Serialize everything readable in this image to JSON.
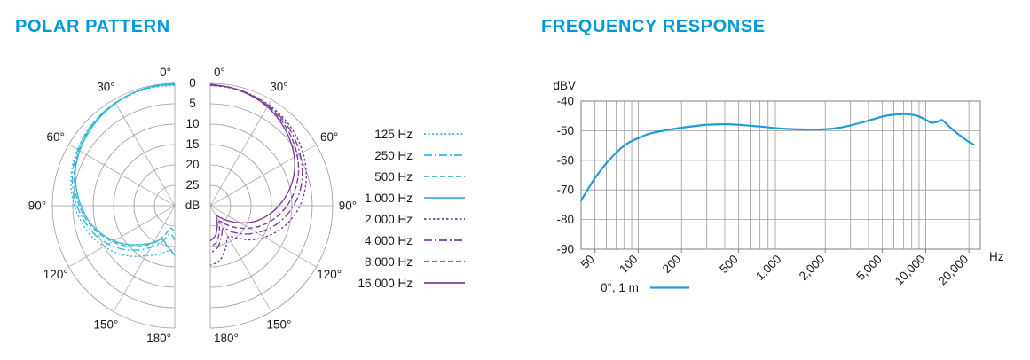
{
  "theme": {
    "accent": "#0099d8",
    "text": "#1a1a1a",
    "grid": "#9b9b9b",
    "frame": "#7d7d7d"
  },
  "chart_data": [
    {
      "type": "polar",
      "title": "POLAR PATTERN",
      "unit": "dB",
      "max_db": 30,
      "angle_step": 10,
      "rings_db": [
        0,
        5,
        10,
        15,
        20,
        25
      ],
      "db_axis_labels": [
        "0",
        "5",
        "10",
        "15",
        "20",
        "25",
        "dB"
      ],
      "angle_labels": [
        "0°",
        "30°",
        "60°",
        "90°",
        "120°",
        "150°",
        "180°"
      ],
      "series": [
        {
          "label": "125 Hz",
          "color": "#36b6d9",
          "dash": "2 2.6",
          "side": "left",
          "db": [
            0.5,
            0.5,
            0.7,
            0.9,
            1.3,
            1.8,
            2.4,
            3.2,
            4.2,
            5.4,
            6.8,
            8.2,
            10,
            11.8,
            13.8,
            15.8,
            17.2,
            18.6,
            19.4
          ]
        },
        {
          "label": "250 Hz",
          "color": "#36b6d9",
          "dash": "9 3 2 3",
          "side": "left",
          "db": [
            0.3,
            0.4,
            0.6,
            0.9,
            1.3,
            1.9,
            2.6,
            3.5,
            4.6,
            6,
            7.6,
            9.2,
            11.2,
            13.4,
            15.8,
            18.2,
            20.4,
            23,
            21.6
          ]
        },
        {
          "label": "500 Hz",
          "color": "#36b6d9",
          "dash": "6 3",
          "side": "left",
          "db": [
            0.2,
            0.3,
            0.5,
            0.9,
            1.4,
            2.1,
            2.9,
            3.9,
            5.1,
            6.6,
            8.2,
            10.2,
            12.4,
            14.6,
            17,
            19.4,
            22,
            24.4,
            23.2
          ]
        },
        {
          "label": "1,000 Hz",
          "color": "#36b6d9",
          "dash": null,
          "side": "left",
          "db": [
            0,
            0.2,
            0.5,
            1,
            1.6,
            2.3,
            3.1,
            4.1,
            5.5,
            7,
            8.6,
            10.6,
            12.8,
            15.2,
            17.6,
            19.6,
            21.2,
            19.8,
            17.8
          ]
        },
        {
          "label": "2,000 Hz",
          "color": "#7b3f97",
          "dash": "2.5 2.5",
          "side": "right",
          "db": [
            0.5,
            0.7,
            1,
            1.4,
            2,
            2.8,
            3.8,
            5,
            6.4,
            8,
            10,
            12.2,
            14.6,
            17,
            19.6,
            21.2,
            19,
            16.4,
            15.4
          ]
        },
        {
          "label": "4,000 Hz",
          "color": "#7b3f97",
          "dash": "9 3 2 3",
          "side": "right",
          "db": [
            0.4,
            0.6,
            1,
            1.6,
            2.4,
            3.4,
            4.6,
            6,
            7.6,
            9.6,
            11.8,
            14.2,
            16.8,
            19.2,
            21.6,
            23.6,
            22,
            19.6,
            18.4
          ]
        },
        {
          "label": "8,000 Hz",
          "color": "#7b3f97",
          "dash": "6 3",
          "side": "right",
          "db": [
            0.3,
            0.6,
            1.1,
            1.8,
            2.8,
            4,
            5.4,
            7,
            9,
            11.2,
            13.6,
            16.2,
            19,
            21.6,
            24,
            25.6,
            23.4,
            21,
            20
          ]
        },
        {
          "label": "16,000 Hz",
          "color": "#7b3f97",
          "dash": null,
          "side": "right",
          "db": [
            0.2,
            0.6,
            1.2,
            2,
            3.2,
            4.6,
            6.2,
            8.2,
            10.6,
            13.2,
            15.8,
            18.6,
            21.6,
            24.2,
            26.2,
            27,
            25,
            22.6,
            21.4
          ]
        }
      ]
    },
    {
      "type": "line",
      "title": "FREQUENCY RESPONSE",
      "ylabel": "dBV",
      "xunit": "Hz",
      "color": "#1e9cd8",
      "ylim": [
        -90,
        -40
      ],
      "xlim": [
        40,
        24000
      ],
      "yticks": [
        -40,
        -50,
        -60,
        -70,
        -80,
        -90
      ],
      "xgrid": [
        50,
        60,
        70,
        80,
        90,
        100,
        200,
        300,
        400,
        500,
        600,
        700,
        800,
        900,
        1000,
        2000,
        3000,
        4000,
        5000,
        6000,
        7000,
        8000,
        9000,
        10000,
        20000
      ],
      "xticks": [
        50,
        100,
        200,
        500,
        1000,
        2000,
        5000,
        10000,
        20000
      ],
      "xtick_labels": [
        "50",
        "100",
        "200",
        "500",
        "1,000",
        "2,000",
        "5,000",
        "10,000",
        "20,000"
      ],
      "legend": {
        "label": "0°, 1 m"
      },
      "points": {
        "x": [
          40,
          45,
          50,
          60,
          70,
          80,
          90,
          100,
          120,
          150,
          200,
          250,
          300,
          400,
          500,
          700,
          1000,
          1500,
          2000,
          2500,
          3000,
          4000,
          5000,
          6000,
          7000,
          8000,
          9000,
          10000,
          11000,
          12000,
          13000,
          14000,
          16000,
          18000,
          20000,
          21500
        ],
        "y": [
          -73.5,
          -69.5,
          -66,
          -61,
          -57.5,
          -55,
          -53.5,
          -52.5,
          -51,
          -50,
          -49,
          -48.4,
          -48,
          -47.8,
          -48,
          -48.6,
          -49.3,
          -49.6,
          -49.5,
          -49,
          -48.2,
          -46.6,
          -45.2,
          -44.6,
          -44.4,
          -44.6,
          -45.2,
          -46.3,
          -47.3,
          -47,
          -46.4,
          -47.8,
          -50.3,
          -52.2,
          -53.8,
          -54.6
        ]
      }
    }
  ]
}
